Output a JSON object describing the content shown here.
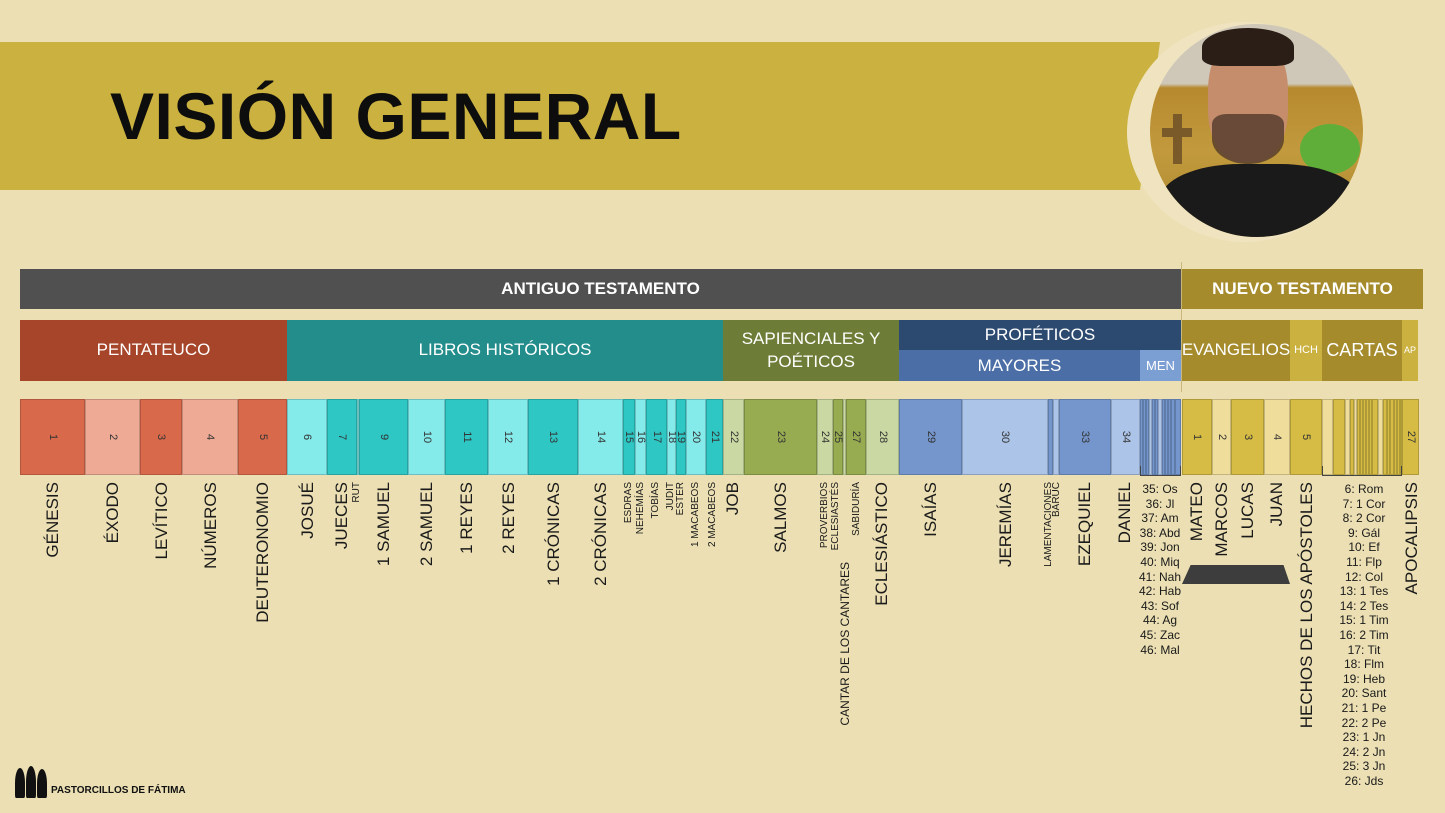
{
  "header": {
    "title": "VISIÓN GENERAL"
  },
  "brand": {
    "name": "PASTORCILLOS DE FÁTIMA",
    "logo_icon": "three-children-silhouette-icon"
  },
  "presenter": {
    "description": "presenter-webcam"
  },
  "testaments": [
    {
      "label": "ANTIGUO TESTAMENTO",
      "color": "#505050"
    },
    {
      "label": "NUEVO TESTAMENTO",
      "color": "#a58b2c"
    }
  ],
  "sections": {
    "pentateuco": {
      "label": "PENTATEUCO",
      "color": "#a6452a"
    },
    "historicos": {
      "label": "LIBROS HISTÓRICOS",
      "color": "#238d8c"
    },
    "sapienciales": {
      "label": "SAPIENCIALES Y POÉTICOS",
      "label_line1": "SAPIENCIALES Y",
      "label_line2": "POÉTICOS",
      "color": "#6d7d38"
    },
    "profeticos": {
      "label": "PROFÉTICOS",
      "color": "#2c4a70"
    },
    "mayores": {
      "label": "MAYORES",
      "color": "#4a6ea5"
    },
    "menores": {
      "label": "MEN",
      "color": "#7b9ed3"
    },
    "evangelios": {
      "label": "EVANGELIOS",
      "color": "#a58b2c"
    },
    "hechos": {
      "label": "HCH",
      "color": "#cbb13f"
    },
    "cartas": {
      "label": "CARTAS",
      "color": "#a58b2c"
    },
    "apocalipsis": {
      "label": "AP",
      "color": "#cbb13f"
    }
  },
  "colors": {
    "pent_dark": "#d9694b",
    "pent_light": "#eeaa94",
    "hist_dark": "#2ec7c4",
    "hist_light": "#85eaea",
    "sap_dark": "#97ab51",
    "sap_light": "#cad9a3",
    "prof_dark": "#7596cc",
    "prof_light": "#abc4e7",
    "nt_dark": "#d6bc45",
    "nt_light": "#efdd9b"
  },
  "books": [
    {
      "n": "1",
      "name": "GÉNESIS"
    },
    {
      "n": "2",
      "name": "ÉXODO"
    },
    {
      "n": "3",
      "name": "LEVÍTICO"
    },
    {
      "n": "4",
      "name": "NÚMEROS"
    },
    {
      "n": "5",
      "name": "DEUTERONOMIO"
    },
    {
      "n": "6",
      "name": "JOSUÉ"
    },
    {
      "n": "7",
      "name": "JUECES"
    },
    {
      "n": "8",
      "name": "RUT"
    },
    {
      "n": "9",
      "name": "1 SAMUEL"
    },
    {
      "n": "10",
      "name": "2 SAMUEL"
    },
    {
      "n": "11",
      "name": "1 REYES"
    },
    {
      "n": "12",
      "name": "2 REYES"
    },
    {
      "n": "13",
      "name": "1 CRÓNICAS"
    },
    {
      "n": "14",
      "name": "2 CRÓNICAS"
    },
    {
      "n": "15",
      "name": "ESDRAS"
    },
    {
      "n": "16",
      "name": "NEHEMÍAS"
    },
    {
      "n": "17",
      "name": "TOBÍAS"
    },
    {
      "n": "18",
      "name": "JUDIT"
    },
    {
      "n": "19",
      "name": "ESTER"
    },
    {
      "n": "20",
      "name": "1 MACABEOS"
    },
    {
      "n": "21",
      "name": "2 MACABEOS"
    },
    {
      "n": "22",
      "name": "JOB"
    },
    {
      "n": "23",
      "name": "SALMOS"
    },
    {
      "n": "24",
      "name": "PROVERBIOS"
    },
    {
      "n": "25",
      "name": "ECLESIASTÉS"
    },
    {
      "n": "26",
      "name": "CANTAR DE LOS CANTARES"
    },
    {
      "n": "27",
      "name": "SABIDURÍA"
    },
    {
      "n": "28",
      "name": "ECLESIÁSTICO"
    },
    {
      "n": "29",
      "name": "ISAÍAS"
    },
    {
      "n": "30",
      "name": "JEREMÍAS"
    },
    {
      "n": "31",
      "name": "LAMENTACIONES"
    },
    {
      "n": "32",
      "name": "BARUC"
    },
    {
      "n": "33",
      "name": "EZEQUIEL"
    },
    {
      "n": "34",
      "name": "DANIEL"
    }
  ],
  "minor_prophets": [
    "35: Os",
    "36: Jl",
    "37: Am",
    "38: Abd",
    "39: Jon",
    "40: Miq",
    "41: Nah",
    "42: Hab",
    "43: Sof",
    "44: Ag",
    "45: Zac",
    "46: Mal"
  ],
  "nt_books": [
    {
      "n": "1",
      "name": "MATEO"
    },
    {
      "n": "2",
      "name": "MARCOS"
    },
    {
      "n": "3",
      "name": "LUCAS"
    },
    {
      "n": "4",
      "name": "JUAN"
    },
    {
      "n": "5",
      "name": "HECHOS DE LOS APÓSTOLES"
    },
    {
      "n": "27",
      "name": "APOCALIPSIS"
    }
  ],
  "letters": [
    "6: Rom",
    "7: 1 Cor",
    "8: 2 Cor",
    "9: Gál",
    "10: Ef",
    "11: Flp",
    "12: Col",
    "13: 1 Tes",
    "14: 2 Tes",
    "15: 1 Tim",
    "16: 2 Tim",
    "17: Tit",
    "18: Flm",
    "19: Heb",
    "20: Sant",
    "21: 1 Pe",
    "22: 2 Pe",
    "23: 1 Jn",
    "24: 2 Jn",
    "25: 3 Jn",
    "26: Jds"
  ]
}
